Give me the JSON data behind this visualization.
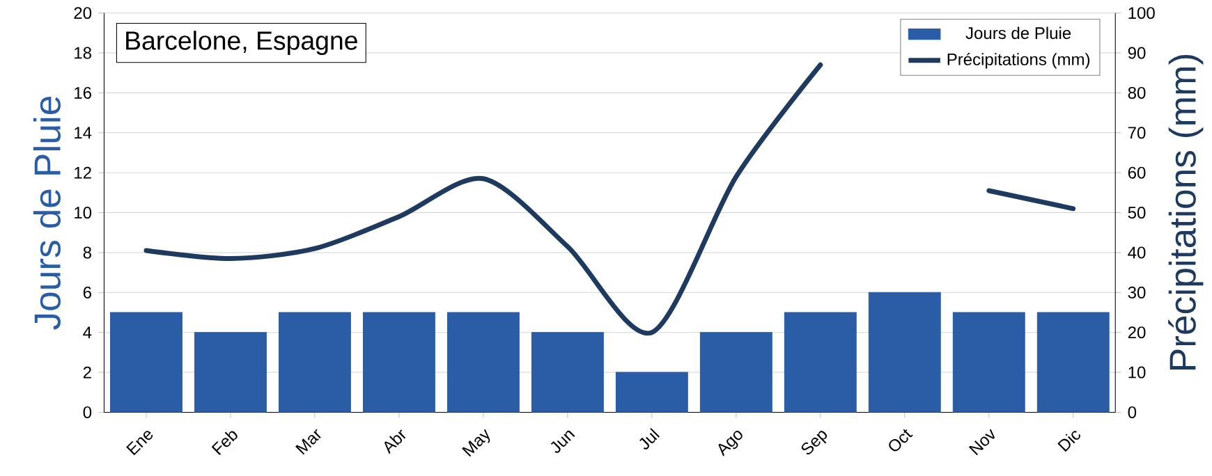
{
  "chart_data": {
    "type": "bar",
    "title": "Barcelone, Espagne",
    "categories": [
      "Ene",
      "Feb",
      "Mar",
      "Abr",
      "May",
      "Jun",
      "Jul",
      "Ago",
      "Sep",
      "Oct",
      "Nov",
      "Dic"
    ],
    "series": [
      {
        "name": "Jours de Pluie",
        "color": "#2a5da6",
        "values": [
          5,
          4,
          5,
          5,
          5,
          4,
          2,
          4,
          5,
          6,
          5,
          5
        ]
      },
      {
        "name": "Précipitations (mm)",
        "type": "line",
        "axis": "y2",
        "color": "#1f3a5f",
        "values": [
          40.5,
          38.5,
          41,
          49,
          58.5,
          41.5,
          20,
          59,
          87,
          null,
          55.5,
          51
        ]
      }
    ],
    "ylabel": "Jours de Pluie",
    "y2label": "Précipitations (mm)",
    "ylim": [
      0,
      20
    ],
    "yticks": [
      0,
      2,
      4,
      6,
      8,
      10,
      12,
      14,
      16,
      18,
      20
    ],
    "y2lim": [
      0,
      100
    ],
    "y2ticks": [
      0,
      10,
      20,
      30,
      40,
      50,
      60,
      70,
      80,
      90,
      100
    ],
    "grid": "y",
    "legend": "top right",
    "marker": "none",
    "line_style": "solid"
  }
}
